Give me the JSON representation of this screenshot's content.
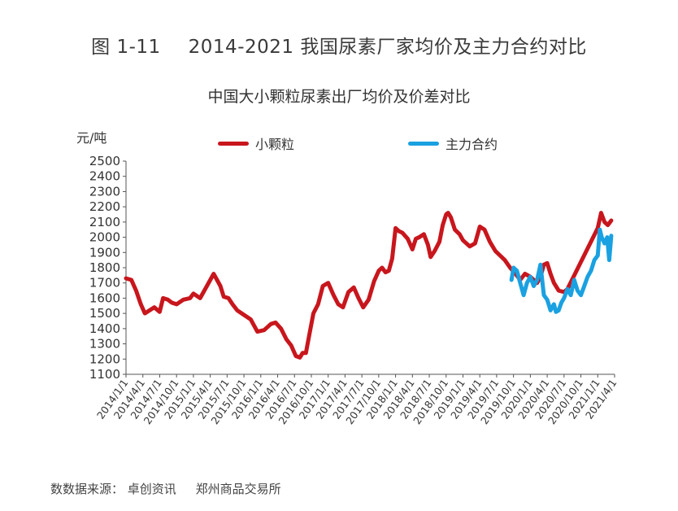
{
  "figure": {
    "number": "图 1-11",
    "title": "2014-2021 我国尿素厂家均价及主力合约对比"
  },
  "source": "数数据来源： 卓创资讯     郑州商品交易所",
  "chart_data": {
    "type": "line",
    "title": "中国大小颗粒尿素出厂均价及价差对比",
    "ylabel": "元/吨",
    "xlabel": "",
    "ylim": [
      1100,
      2500
    ],
    "yticks": [
      1100,
      1200,
      1300,
      1400,
      1500,
      1600,
      1700,
      1800,
      1900,
      2000,
      2100,
      2200,
      2300,
      2400,
      2500
    ],
    "xlim": [
      2014.0,
      2021.25
    ],
    "grid": false,
    "legend_position": "top",
    "categories": [
      "2014/1/1",
      "2014/4/1",
      "2014/7/1",
      "2014/10/1",
      "2015/1/1",
      "2015/4/1",
      "2015/7/1",
      "2015/10/1",
      "2016/1/1",
      "2016/4/1",
      "2016/7/1",
      "2016/10/1",
      "2017/1/1",
      "2017/4/1",
      "2017/7/1",
      "2017/10/1",
      "2018/1/1",
      "2018/4/1",
      "2018/7/1",
      "2018/10/1",
      "2019/1/1",
      "2019/4/1",
      "2019/7/1",
      "2019/10/1",
      "2020/1/1",
      "2020/4/1",
      "2020/7/1",
      "2020/10/1",
      "2021/1/1",
      "2021/4/1"
    ],
    "series": [
      {
        "name": "小颗粒",
        "color": "#c8161d",
        "x": [
          2014.0,
          2014.08,
          2014.15,
          2014.22,
          2014.28,
          2014.35,
          2014.42,
          2014.5,
          2014.55,
          2014.62,
          2014.68,
          2014.75,
          2014.85,
          2014.95,
          2015.0,
          2015.1,
          2015.2,
          2015.3,
          2015.4,
          2015.45,
          2015.52,
          2015.58,
          2015.65,
          2015.75,
          2015.85,
          2015.95,
          2016.05,
          2016.15,
          2016.22,
          2016.3,
          2016.38,
          2016.45,
          2016.52,
          2016.58,
          2016.62,
          2016.67,
          2016.72,
          2016.78,
          2016.85,
          2016.92,
          2017.0,
          2017.08,
          2017.15,
          2017.22,
          2017.3,
          2017.38,
          2017.45,
          2017.52,
          2017.6,
          2017.68,
          2017.75,
          2017.8,
          2017.85,
          2017.9,
          2017.95,
          2018.0,
          2018.05,
          2018.1,
          2018.18,
          2018.25,
          2018.3,
          2018.35,
          2018.42,
          2018.48,
          2018.52,
          2018.58,
          2018.65,
          2018.7,
          2018.75,
          2018.78,
          2018.82,
          2018.88,
          2018.95,
          2019.0,
          2019.1,
          2019.18,
          2019.25,
          2019.32,
          2019.4,
          2019.48,
          2019.55,
          2019.62,
          2019.7,
          2019.78,
          2019.85,
          2019.92,
          2020.0,
          2020.05,
          2020.1,
          2020.15,
          2020.2,
          2020.25,
          2020.3,
          2020.35,
          2020.42,
          2020.5,
          2020.55,
          2021.0,
          2021.05,
          2021.1,
          2021.15,
          2021.2
        ],
        "values": [
          1730,
          1720,
          1650,
          1560,
          1500,
          1520,
          1540,
          1510,
          1600,
          1590,
          1570,
          1560,
          1590,
          1600,
          1630,
          1600,
          1680,
          1760,
          1680,
          1610,
          1600,
          1560,
          1520,
          1490,
          1460,
          1380,
          1390,
          1430,
          1440,
          1400,
          1330,
          1290,
          1220,
          1210,
          1240,
          1240,
          1360,
          1500,
          1560,
          1680,
          1700,
          1620,
          1560,
          1540,
          1640,
          1670,
          1600,
          1540,
          1590,
          1710,
          1780,
          1800,
          1770,
          1780,
          1860,
          2060,
          2040,
          2030,
          1990,
          1920,
          1990,
          2000,
          2020,
          1950,
          1870,
          1910,
          1970,
          2080,
          2150,
          2160,
          2130,
          2050,
          2020,
          1980,
          1940,
          1960,
          2070,
          2050,
          1970,
          1910,
          1880,
          1850,
          1800,
          1760,
          1720,
          1760,
          1740,
          1720,
          1700,
          1740,
          1820,
          1830,
          1760,
          1700,
          1650,
          1640,
          1660,
          2060,
          2160,
          2100,
          2080,
          2110
        ]
      },
      {
        "name": "主力合约",
        "color": "#1aa1e1",
        "x": [
          2019.72,
          2019.75,
          2019.8,
          2019.85,
          2019.9,
          2019.95,
          2020.0,
          2020.05,
          2020.1,
          2020.15,
          2020.2,
          2020.25,
          2020.3,
          2020.35,
          2020.38,
          2020.42,
          2020.46,
          2020.5,
          2020.55,
          2020.6,
          2020.65,
          2020.7,
          2020.75,
          2020.8,
          2020.85,
          2020.9,
          2020.95,
          2021.0,
          2021.03,
          2021.06,
          2021.1,
          2021.14,
          2021.17,
          2021.2
        ],
        "values": [
          1720,
          1800,
          1780,
          1700,
          1620,
          1700,
          1740,
          1680,
          1720,
          1820,
          1620,
          1590,
          1520,
          1560,
          1510,
          1520,
          1570,
          1600,
          1660,
          1620,
          1720,
          1650,
          1620,
          1680,
          1740,
          1780,
          1850,
          1880,
          2050,
          2000,
          1960,
          2000,
          1850,
          2010
        ]
      }
    ]
  }
}
